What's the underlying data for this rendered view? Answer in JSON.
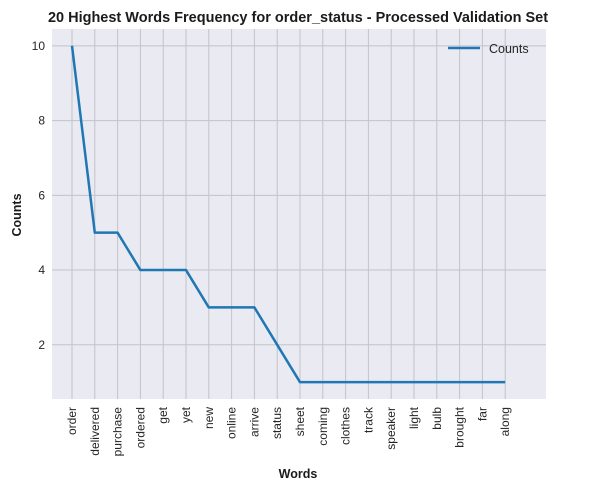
{
  "chart_data": {
    "type": "line",
    "title": "20 Highest Words Frequency for order_status - Processed Validation Set",
    "xlabel": "Words",
    "ylabel": "Counts",
    "categories": [
      "order",
      "delivered",
      "purchase",
      "ordered",
      "get",
      "yet",
      "new",
      "online",
      "arrive",
      "status",
      "sheet",
      "coming",
      "clothes",
      "track",
      "speaker",
      "light",
      "bulb",
      "brought",
      "far",
      "along"
    ],
    "series": [
      {
        "name": "Counts",
        "values": [
          10,
          5,
          5,
          4,
          4,
          4,
          3,
          3,
          3,
          2,
          1,
          1,
          1,
          1,
          1,
          1,
          1,
          1,
          1,
          1
        ],
        "color": "#1f77b4"
      }
    ],
    "yticks": [
      2,
      4,
      6,
      8,
      10
    ],
    "ylim": [
      0.55,
      10.45
    ],
    "grid": true,
    "legend": "top-right",
    "background": "#e9eaf2",
    "grid_color": "#c2c4c8"
  }
}
